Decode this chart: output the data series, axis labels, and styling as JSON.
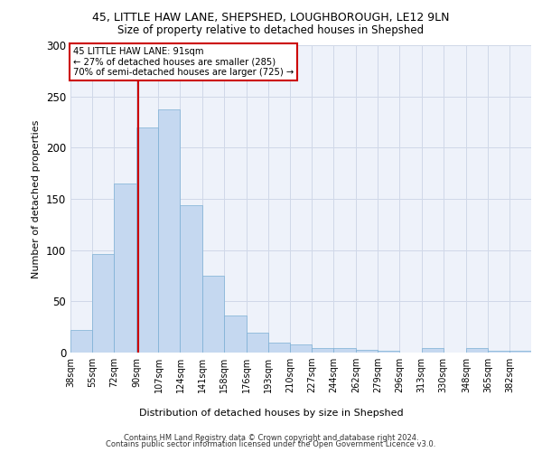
{
  "title_line1": "45, LITTLE HAW LANE, SHEPSHED, LOUGHBOROUGH, LE12 9LN",
  "title_line2": "Size of property relative to detached houses in Shepshed",
  "xlabel": "Distribution of detached houses by size in Shepshed",
  "ylabel": "Number of detached properties",
  "categories": [
    "38sqm",
    "55sqm",
    "72sqm",
    "90sqm",
    "107sqm",
    "124sqm",
    "141sqm",
    "158sqm",
    "176sqm",
    "193sqm",
    "210sqm",
    "227sqm",
    "244sqm",
    "262sqm",
    "279sqm",
    "296sqm",
    "313sqm",
    "330sqm",
    "348sqm",
    "365sqm",
    "382sqm"
  ],
  "bin_edges": [
    38,
    55,
    72,
    90,
    107,
    124,
    141,
    158,
    176,
    193,
    210,
    227,
    244,
    262,
    279,
    296,
    313,
    330,
    348,
    365,
    382,
    399
  ],
  "bar_heights": [
    22,
    96,
    165,
    220,
    237,
    144,
    75,
    36,
    19,
    10,
    8,
    4,
    4,
    3,
    2,
    0,
    4,
    0,
    4,
    2,
    2
  ],
  "property_size": 91,
  "pct_smaller": 27,
  "n_smaller": 285,
  "pct_larger_semi": 70,
  "n_larger_semi": 725,
  "bar_color": "#c5d8f0",
  "bar_edge_color": "#7bafd4",
  "vline_color": "#cc0000",
  "grid_color": "#d0d8e8",
  "background_color": "#eef2fa",
  "ylim": [
    0,
    300
  ],
  "yticks": [
    0,
    50,
    100,
    150,
    200,
    250,
    300
  ],
  "footer_line1": "Contains HM Land Registry data © Crown copyright and database right 2024.",
  "footer_line2": "Contains public sector information licensed under the Open Government Licence v3.0."
}
